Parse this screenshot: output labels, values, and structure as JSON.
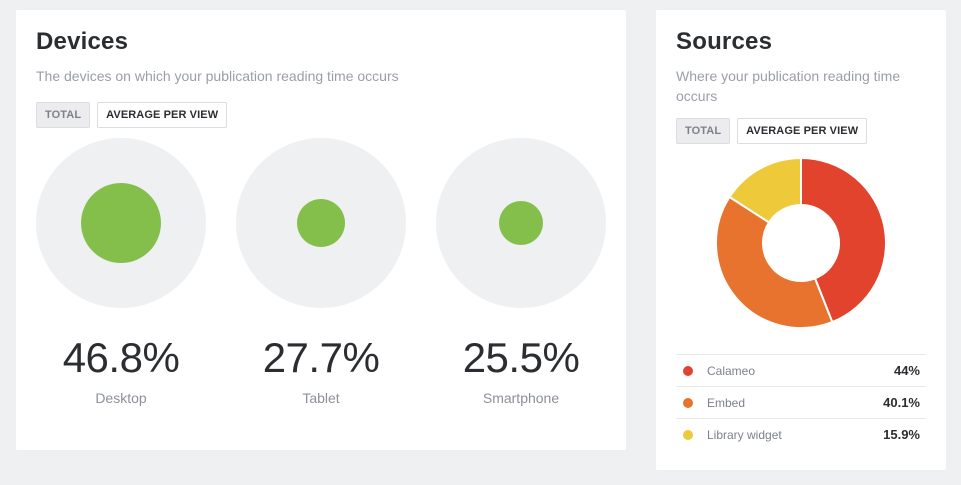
{
  "devices": {
    "title": "Devices",
    "subtitle": "The devices on which your publication reading time occurs",
    "toggle": {
      "total": "TOTAL",
      "average": "AVERAGE PER VIEW"
    },
    "items": [
      {
        "label": "Desktop",
        "percent_label": "46.8%",
        "value": 46.8
      },
      {
        "label": "Tablet",
        "percent_label": "27.7%",
        "value": 27.7
      },
      {
        "label": "Smartphone",
        "percent_label": "25.5%",
        "value": 25.5
      }
    ],
    "dot_color": "#85bf4b"
  },
  "sources": {
    "title": "Sources",
    "subtitle": "Where your publication reading time occurs",
    "toggle": {
      "total": "TOTAL",
      "average": "AVERAGE PER VIEW"
    },
    "legend": [
      {
        "name": "Calameo",
        "value_label": "44%",
        "color": "#e2432d"
      },
      {
        "name": "Embed",
        "value_label": "40.1%",
        "color": "#e8732f"
      },
      {
        "name": "Library widget",
        "value_label": "15.9%",
        "color": "#eec93a"
      }
    ]
  },
  "chart_data": {
    "type": "pie",
    "categories": [
      "Calameo",
      "Embed",
      "Library widget"
    ],
    "values": [
      44,
      40.1,
      15.9
    ],
    "colors": [
      "#e2432d",
      "#e8732f",
      "#eec93a"
    ]
  }
}
